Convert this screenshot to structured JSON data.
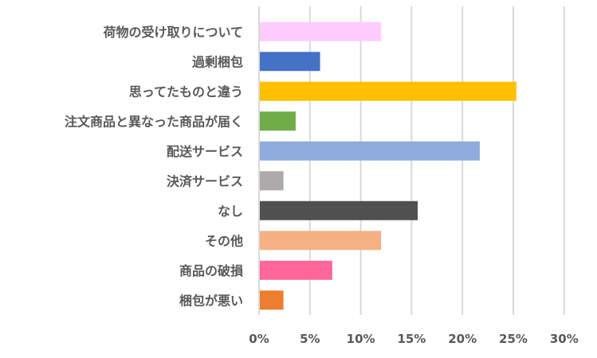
{
  "chart_data": {
    "type": "bar",
    "orientation": "horizontal",
    "title": "",
    "xlabel": "",
    "ylabel": "",
    "categories": [
      "荷物の受け取りについて",
      "過剰梱包",
      "思ってたものと違う",
      "注文商品と異なった商品が届く",
      "配送サービス",
      "決済サービス",
      "なし",
      "その他",
      "商品の破損",
      "梱包が悪い"
    ],
    "values": [
      12.0,
      6.0,
      25.3,
      3.6,
      21.7,
      2.4,
      15.6,
      12.0,
      7.2,
      2.4
    ],
    "colors": [
      "#FFCCFF",
      "#4472C4",
      "#FFC000",
      "#70AD47",
      "#8FAADC",
      "#AEAAAA",
      "#505050",
      "#F4B183",
      "#FF6699",
      "#ED7D31"
    ],
    "xlim": [
      0,
      30
    ],
    "ticks": [
      "0%",
      "5%",
      "10%",
      "15%",
      "20%",
      "25%",
      "30%"
    ],
    "tick_values": [
      0,
      5,
      10,
      15,
      20,
      25,
      30
    ],
    "grid": true,
    "legend": "none"
  }
}
